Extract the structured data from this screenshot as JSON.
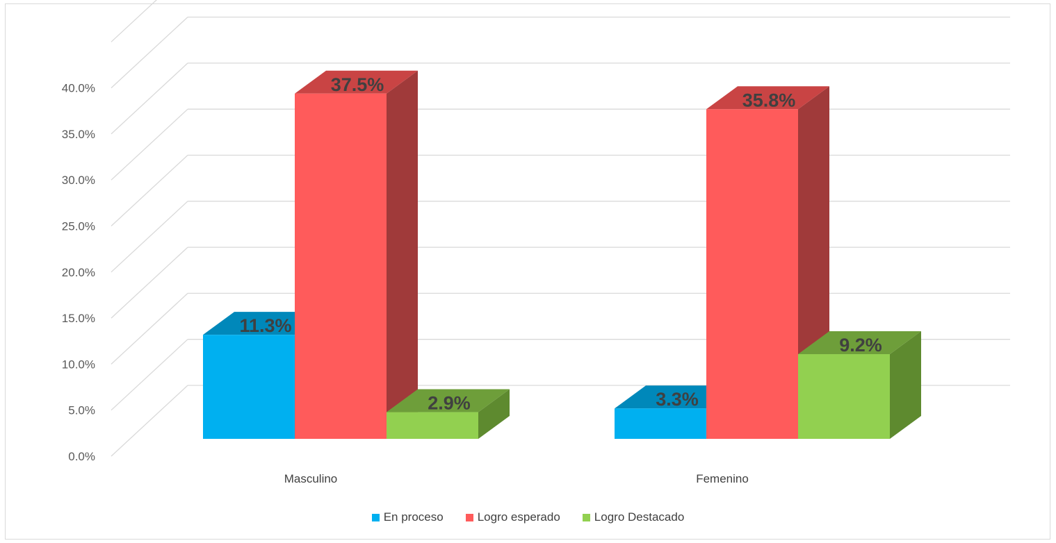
{
  "chart_data": {
    "type": "bar",
    "categories": [
      "Masculino",
      "Femenino"
    ],
    "series": [
      {
        "name": "En proceso",
        "values": [
          11.3,
          3.3
        ],
        "labels": [
          "11.3%",
          "3.3%"
        ],
        "color": "#00B0F0",
        "top_color": "#0088BA",
        "side_color": "#006E96"
      },
      {
        "name": "Logro esperado",
        "values": [
          37.5,
          35.8
        ],
        "labels": [
          "37.5%",
          "35.8%"
        ],
        "color": "#FF5B5B",
        "top_color": "#C94444",
        "side_color": "#A03A3A"
      },
      {
        "name": "Logro Destacado",
        "values": [
          2.9,
          9.2
        ],
        "labels": [
          "2.9%",
          "9.2%"
        ],
        "color": "#92D050",
        "top_color": "#6E9E3A",
        "side_color": "#5E8A2F"
      }
    ],
    "y_ticks": [
      "0.0%",
      "5.0%",
      "10.0%",
      "15.0%",
      "20.0%",
      "25.0%",
      "30.0%",
      "35.0%",
      "40.0%"
    ],
    "ylim": [
      0,
      40
    ],
    "grid": true,
    "legend_position": "bottom",
    "three_d": true
  }
}
